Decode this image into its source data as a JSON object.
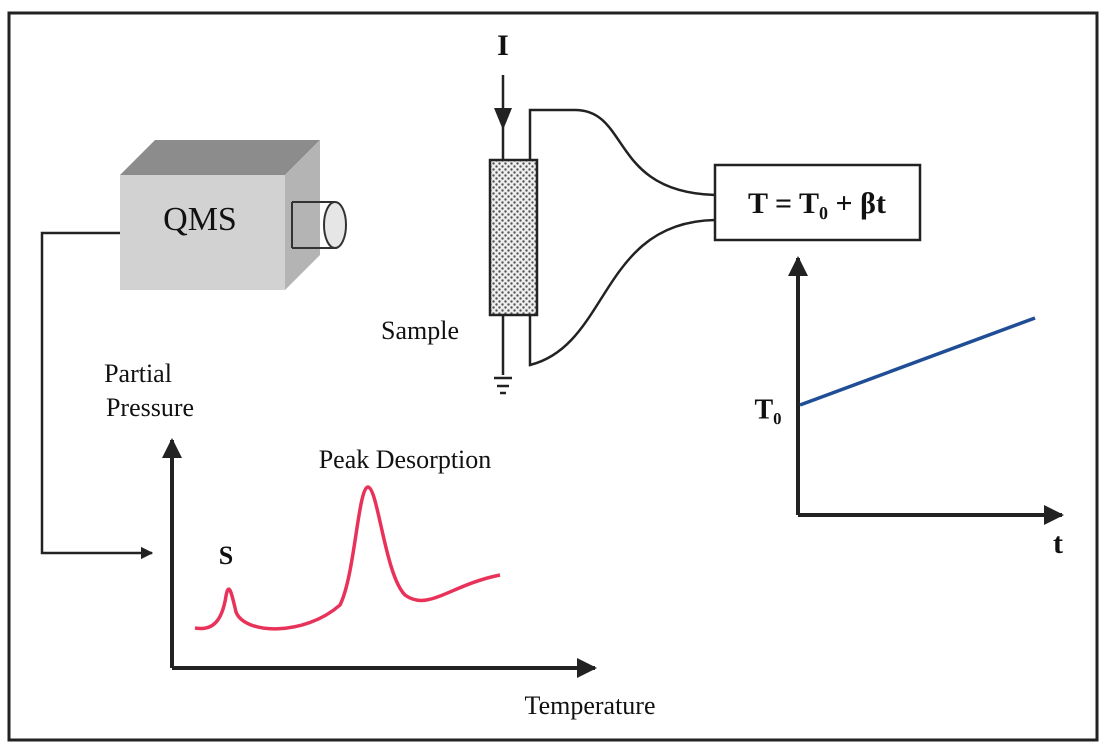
{
  "qms": {
    "label": "QMS"
  },
  "current": {
    "label": "I"
  },
  "sample": {
    "label": "Sample"
  },
  "controller": {
    "formula": "T = T₀ + βt"
  },
  "spectrum": {
    "y_label": [
      "Partial",
      "Pressure"
    ],
    "peak_label": "Peak Desorption",
    "s_label": "S",
    "x_label": "Temperature"
  },
  "ramp": {
    "y_label": "T₀",
    "x_label": "t"
  }
}
